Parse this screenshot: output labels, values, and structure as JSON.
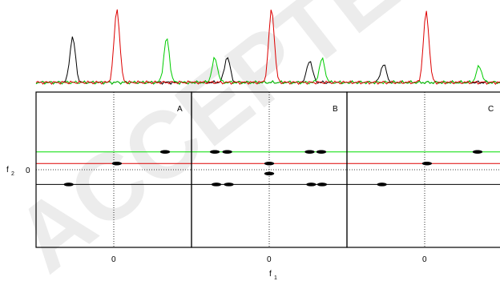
{
  "watermark": "ACCEPTED",
  "chart_data": {
    "type": "line",
    "axes": {
      "x_label": "f",
      "x_label_sub": "1",
      "y_label": "f",
      "y_label_sub": "2",
      "y_tick_label": "0",
      "x_tick_label": "0"
    },
    "y_range": [
      -1,
      1
    ],
    "x_range": [
      -1,
      1
    ],
    "horizontal_lines": [
      {
        "color": "#00dd00",
        "y": 0.23
      },
      {
        "color": "#dd0000",
        "y": 0.08
      },
      {
        "color": "#000000",
        "y": -0.19
      }
    ],
    "panels": [
      {
        "label": "A",
        "x_tick": "0",
        "peaks_2d": [
          {
            "x": 0.04,
            "y": 0.08
          },
          {
            "x": 0.66,
            "y": 0.23
          },
          {
            "x": -0.58,
            "y": -0.19
          }
        ],
        "trace_peaks": {
          "black": [
            {
              "x": -0.53,
              "h": 0.62
            }
          ],
          "red": [
            {
              "x": 0.04,
              "h": 1.0
            }
          ],
          "green": [
            {
              "x": 0.68,
              "h": 0.6
            }
          ]
        }
      },
      {
        "label": "B",
        "x_tick": "0",
        "peaks_2d": [
          {
            "x": 0.0,
            "y": 0.08
          },
          {
            "x": 0.0,
            "y": -0.05
          },
          {
            "x": -0.7,
            "y": 0.23
          },
          {
            "x": -0.54,
            "y": 0.23
          },
          {
            "x": 0.52,
            "y": 0.23
          },
          {
            "x": 0.67,
            "y": 0.23
          },
          {
            "x": -0.68,
            "y": -0.19
          },
          {
            "x": -0.52,
            "y": -0.19
          },
          {
            "x": 0.54,
            "y": -0.19
          },
          {
            "x": 0.68,
            "y": -0.19
          }
        ],
        "trace_peaks": {
          "black": [
            {
              "x": -0.54,
              "h": 0.35
            },
            {
              "x": 0.52,
              "h": 0.3
            }
          ],
          "red": [
            {
              "x": 0.03,
              "h": 1.0
            }
          ],
          "green": [
            {
              "x": -0.7,
              "h": 0.33
            },
            {
              "x": 0.68,
              "h": 0.32
            }
          ]
        }
      },
      {
        "label": "C",
        "x_tick": "0",
        "peaks_2d": [
          {
            "x": 0.03,
            "y": 0.08
          },
          {
            "x": 0.68,
            "y": 0.23
          },
          {
            "x": -0.55,
            "y": -0.19
          }
        ],
        "trace_peaks": {
          "black": [
            {
              "x": -0.53,
              "h": 0.25
            }
          ],
          "red": [
            {
              "x": 0.02,
              "h": 0.96
            }
          ],
          "green": [
            {
              "x": 0.7,
              "h": 0.22
            }
          ]
        }
      }
    ]
  }
}
